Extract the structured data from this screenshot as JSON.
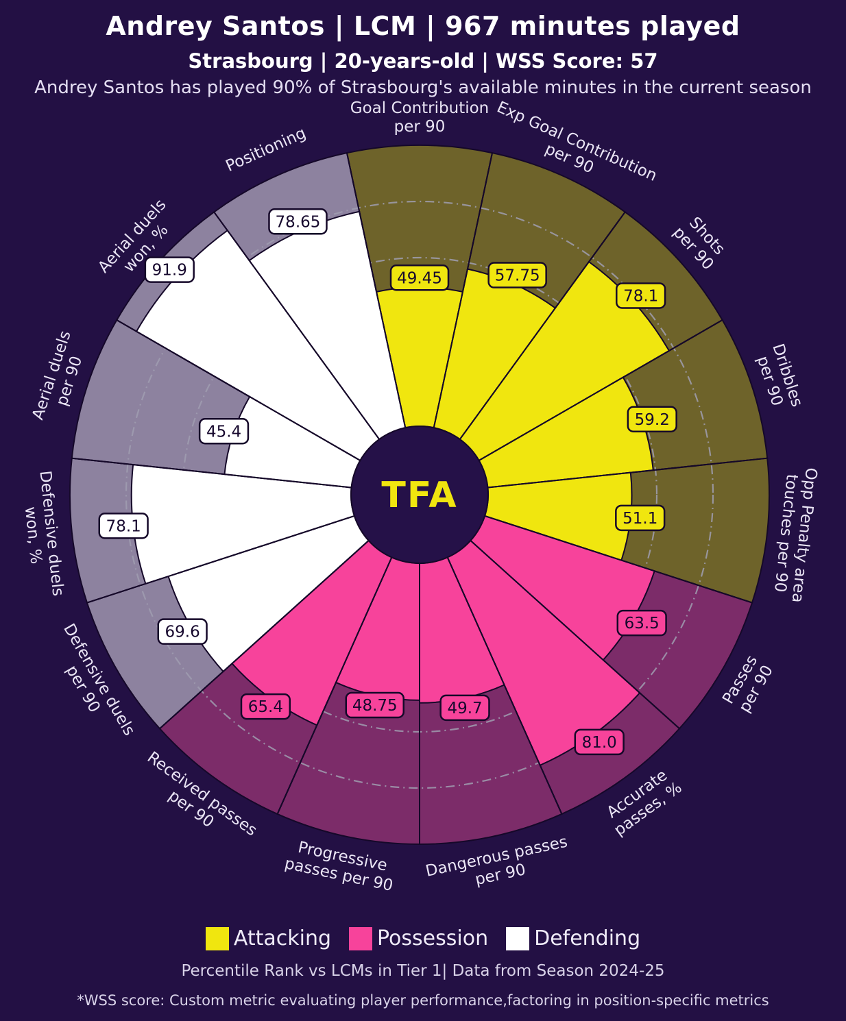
{
  "header": {
    "title": "Andrey Santos | LCM | 967 minutes played",
    "subtitle": "Strasbourg | 20-years-old | WSS Score: 57",
    "description": "Andrey Santos has played 90% of Strasbourg's available minutes in the current season"
  },
  "chart_data": {
    "type": "pizza",
    "title": "Andrey Santos | LCM | 967 minutes played",
    "subtitle": "Strasbourg | 20-years-old | WSS Score: 57",
    "scale": {
      "min": 0,
      "max": 100,
      "rings": [
        20,
        40,
        60,
        80
      ],
      "grid": "dash-dot"
    },
    "legend_position": "bottom",
    "center_logo": "TFA",
    "groups": {
      "Attacking": {
        "fill": "#F0E60F",
        "bg": "#6E632A"
      },
      "Possession": {
        "fill": "#F7439B",
        "bg": "#7C2C69"
      },
      "Defending": {
        "fill": "#FFFFFF",
        "bg": "#8D829F"
      }
    },
    "slices": [
      {
        "metric": "Goal Contribution per 90",
        "label_lines": [
          "Goal Contribution",
          "per 90"
        ],
        "value": 49.45,
        "display": "49.45",
        "group": "Attacking"
      },
      {
        "metric": "Exp Goal Contribution per 90",
        "label_lines": [
          "Exp Goal Contribution",
          "per 90"
        ],
        "value": 57.75,
        "display": "57.75",
        "group": "Attacking"
      },
      {
        "metric": "Shots per 90",
        "label_lines": [
          "Shots",
          "per 90"
        ],
        "value": 78.1,
        "display": "78.1",
        "group": "Attacking"
      },
      {
        "metric": "Dribbles per 90",
        "label_lines": [
          "Dribbles",
          "per 90"
        ],
        "value": 59.2,
        "display": "59.2",
        "group": "Attacking"
      },
      {
        "metric": "Opp Penalty area touches per 90",
        "label_lines": [
          "Opp Penalty area",
          "touches per 90"
        ],
        "value": 51.1,
        "display": "51.1",
        "group": "Attacking"
      },
      {
        "metric": "Passes per 90",
        "label_lines": [
          "Passes",
          "per 90"
        ],
        "value": 63.5,
        "display": "63.5",
        "group": "Possession"
      },
      {
        "metric": "Accurate passes, %",
        "label_lines": [
          "Accurate",
          "passes, %"
        ],
        "value": 81.0,
        "display": "81.0",
        "group": "Possession"
      },
      {
        "metric": "Dangerous passes per 90",
        "label_lines": [
          "Dangerous passes",
          "per 90"
        ],
        "value": 49.7,
        "display": "49.7",
        "group": "Possession"
      },
      {
        "metric": "Progressive passes per 90",
        "label_lines": [
          "Progressive",
          "passes per 90"
        ],
        "value": 48.75,
        "display": "48.75",
        "group": "Possession"
      },
      {
        "metric": "Received passes per 90",
        "label_lines": [
          "Received passes",
          "per 90"
        ],
        "value": 65.4,
        "display": "65.4",
        "group": "Possession"
      },
      {
        "metric": "Defensive duels per 90",
        "label_lines": [
          "Defensive duels",
          "per 90"
        ],
        "value": 69.6,
        "display": "69.6",
        "group": "Defending"
      },
      {
        "metric": "Defensive duels won, %",
        "label_lines": [
          "Defensive duels",
          "won, %"
        ],
        "value": 78.1,
        "display": "78.1",
        "group": "Defending"
      },
      {
        "metric": "Aerial duels per 90",
        "label_lines": [
          "Aerial duels",
          "per 90"
        ],
        "value": 45.4,
        "display": "45.4",
        "group": "Defending"
      },
      {
        "metric": "Aerial duels won, %",
        "label_lines": [
          "Aerial duels",
          "won, %"
        ],
        "value": 91.9,
        "display": "91.9",
        "group": "Defending"
      },
      {
        "metric": "Positioning",
        "label_lines": [
          "Positioning"
        ],
        "value": 78.65,
        "display": "78.65",
        "group": "Defending"
      }
    ]
  },
  "legend": {
    "items": [
      {
        "label": "Attacking",
        "color": "#F0E60F"
      },
      {
        "label": "Possession",
        "color": "#F7439B"
      },
      {
        "label": "Defending",
        "color": "#FFFFFF"
      }
    ]
  },
  "footer": {
    "percentile_note": "Percentile Rank vs LCMs in Tier 1| Data from Season 2024-25",
    "wss_note": "*WSS score: Custom metric evaluating player performance,factoring in position-specific metrics"
  },
  "colors": {
    "background": "#231044",
    "center_circle": "#251148",
    "slice_border": "#150829",
    "ring": "#A09DB0",
    "label_text": "#E9E4F4",
    "badge_text": "#17092E",
    "logo_text": "#F0E60F"
  }
}
